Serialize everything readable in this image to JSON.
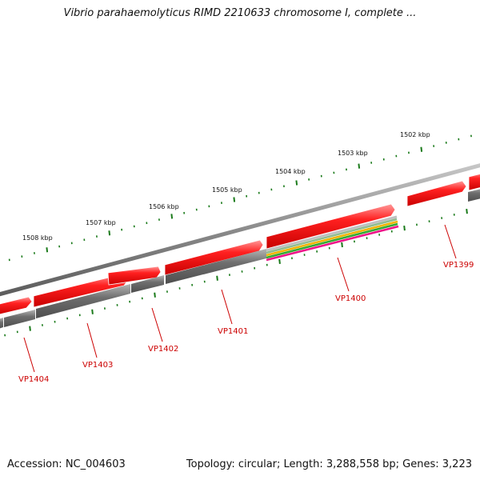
{
  "title": "Vibrio parahaemolyticus RIMD 2210633 chromosome I, complete ...",
  "footer": {
    "accession": "Accession: NC_004603",
    "summary": "Topology: circular; Length: 3,288,558 bp; Genes: 3,223"
  },
  "ruler": {
    "labels": [
      "1502 kbp",
      "1503 kbp",
      "1504 kbp",
      "1505 kbp",
      "1506 kbp",
      "1507 kbp",
      "1508 kbp"
    ]
  },
  "genes": [
    {
      "label": "VP1399"
    },
    {
      "label": "VP1400"
    },
    {
      "label": "VP1401"
    },
    {
      "label": "VP1402"
    },
    {
      "label": "VP1403"
    },
    {
      "label": "VP1404"
    }
  ],
  "colors": {
    "gene_label": "#cc0000",
    "ruler_tick": "#1a7a1a",
    "gene_red": "#ff1a1a",
    "gene_grey": "#6a6a6a",
    "backbone": "#8a8a8a",
    "stripe_colors": [
      "#8fbc8f",
      "#f0b400",
      "#33aa33",
      "#ee1188"
    ]
  }
}
